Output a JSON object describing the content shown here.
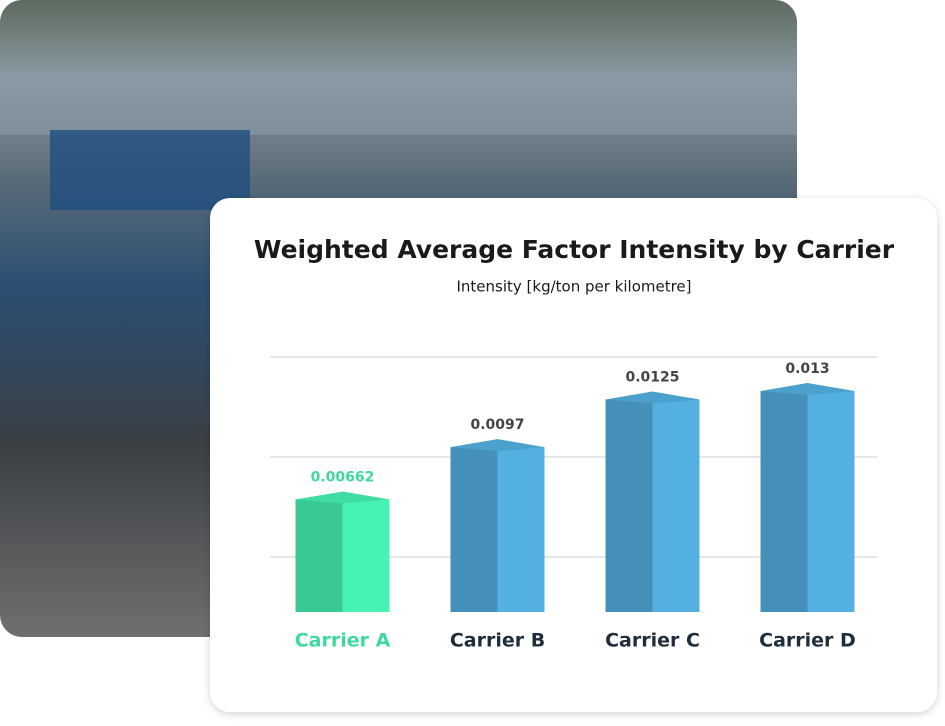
{
  "chart_data": {
    "type": "bar",
    "title": "Weighted Average Factor Intensity by Carrier",
    "subtitle": "Intensity [kg/ton per kilometre]",
    "categories": [
      "Carrier A",
      "Carrier B",
      "Carrier C",
      "Carrier D"
    ],
    "values": [
      0.00662,
      0.0097,
      0.0125,
      0.013
    ],
    "colors": [
      "#3fd9a0",
      "#4a9dc8",
      "#4a9dc8",
      "#4a9dc8"
    ],
    "highlight_index": 0,
    "ylim": [
      0,
      0.015
    ]
  }
}
